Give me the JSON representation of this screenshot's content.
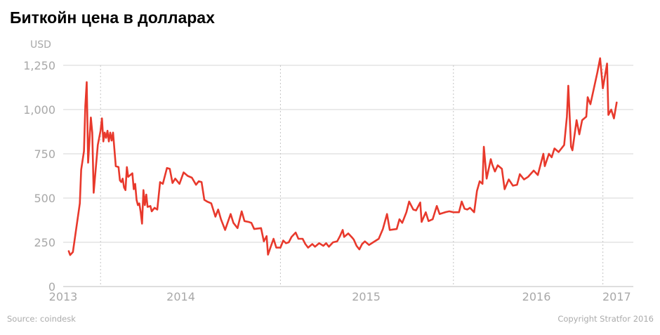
{
  "title": "Биткойн цена в долларах",
  "footer": {
    "source": "Source: coindesk",
    "copyright": "Copyright Stratfor 2016"
  },
  "chart_data": {
    "type": "line",
    "title": "Биткойн цена в долларах",
    "ylabel": "USD",
    "xlabel": "",
    "ylim": [
      0,
      1250
    ],
    "xlim": [
      2013.0,
      2017.12
    ],
    "y_ticks": [
      {
        "value": 0,
        "label": "0"
      },
      {
        "value": 250,
        "label": "250"
      },
      {
        "value": 500,
        "label": "500"
      },
      {
        "value": 750,
        "label": "750"
      },
      {
        "value": 1000,
        "label": "1,000"
      },
      {
        "value": 1250,
        "label": "1,250"
      }
    ],
    "x_ticks": [
      {
        "value": 2013.0,
        "label": "2013"
      },
      {
        "value": 2013.85,
        "label": "2014"
      },
      {
        "value": 2015.19,
        "label": "2015"
      },
      {
        "value": 2016.42,
        "label": "2016"
      },
      {
        "value": 2017.0,
        "label": "2017"
      }
    ],
    "vertical_gridlines": [
      2013.27,
      2014.57,
      2015.82,
      2016.9
    ],
    "grid": true,
    "color": "#e8392c",
    "series": [
      {
        "values": [
          [
            2013.04,
            200
          ],
          [
            2013.05,
            178
          ],
          [
            2013.07,
            195
          ],
          [
            2013.12,
            470
          ],
          [
            2013.13,
            660
          ],
          [
            2013.15,
            765
          ],
          [
            2013.16,
            1020
          ],
          [
            2013.17,
            1155
          ],
          [
            2013.18,
            700
          ],
          [
            2013.2,
            955
          ],
          [
            2013.21,
            870
          ],
          [
            2013.22,
            530
          ],
          [
            2013.25,
            800
          ],
          [
            2013.27,
            880
          ],
          [
            2013.28,
            950
          ],
          [
            2013.29,
            820
          ],
          [
            2013.3,
            870
          ],
          [
            2013.31,
            840
          ],
          [
            2013.32,
            880
          ],
          [
            2013.33,
            820
          ],
          [
            2013.34,
            870
          ],
          [
            2013.35,
            825
          ],
          [
            2013.36,
            870
          ],
          [
            2013.38,
            680
          ],
          [
            2013.4,
            675
          ],
          [
            2013.41,
            600
          ],
          [
            2013.42,
            590
          ],
          [
            2013.43,
            610
          ],
          [
            2013.44,
            560
          ],
          [
            2013.45,
            545
          ],
          [
            2013.46,
            675
          ],
          [
            2013.47,
            620
          ],
          [
            2013.5,
            640
          ],
          [
            2013.51,
            550
          ],
          [
            2013.52,
            580
          ],
          [
            2013.53,
            490
          ],
          [
            2013.54,
            460
          ],
          [
            2013.55,
            470
          ],
          [
            2013.56,
            420
          ],
          [
            2013.57,
            355
          ],
          [
            2013.58,
            545
          ],
          [
            2013.59,
            460
          ],
          [
            2013.6,
            520
          ],
          [
            2013.61,
            450
          ],
          [
            2013.63,
            455
          ],
          [
            2013.64,
            425
          ],
          [
            2013.66,
            445
          ],
          [
            2013.68,
            435
          ],
          [
            2013.7,
            590
          ],
          [
            2013.72,
            580
          ],
          [
            2013.75,
            670
          ],
          [
            2013.77,
            665
          ],
          [
            2013.79,
            585
          ],
          [
            2013.81,
            610
          ],
          [
            2013.84,
            580
          ],
          [
            2013.87,
            645
          ],
          [
            2013.9,
            625
          ],
          [
            2013.93,
            615
          ],
          [
            2013.96,
            575
          ],
          [
            2013.98,
            595
          ],
          [
            2014.0,
            590
          ],
          [
            2014.02,
            490
          ],
          [
            2014.04,
            480
          ],
          [
            2014.07,
            470
          ],
          [
            2014.1,
            395
          ],
          [
            2014.12,
            435
          ],
          [
            2014.14,
            380
          ],
          [
            2014.17,
            320
          ],
          [
            2014.21,
            410
          ],
          [
            2014.23,
            360
          ],
          [
            2014.26,
            330
          ],
          [
            2014.29,
            425
          ],
          [
            2014.31,
            370
          ],
          [
            2014.34,
            365
          ],
          [
            2014.36,
            360
          ],
          [
            2014.38,
            325
          ],
          [
            2014.43,
            330
          ],
          [
            2014.45,
            255
          ],
          [
            2014.47,
            285
          ],
          [
            2014.48,
            180
          ],
          [
            2014.5,
            225
          ],
          [
            2014.52,
            270
          ],
          [
            2014.54,
            220
          ],
          [
            2014.57,
            220
          ],
          [
            2014.59,
            260
          ],
          [
            2014.61,
            245
          ],
          [
            2014.63,
            250
          ],
          [
            2014.65,
            280
          ],
          [
            2014.68,
            305
          ],
          [
            2014.7,
            270
          ],
          [
            2014.73,
            270
          ],
          [
            2014.75,
            240
          ],
          [
            2014.77,
            220
          ],
          [
            2014.8,
            240
          ],
          [
            2014.82,
            225
          ],
          [
            2014.85,
            245
          ],
          [
            2014.88,
            230
          ],
          [
            2014.9,
            245
          ],
          [
            2014.92,
            225
          ],
          [
            2014.95,
            250
          ],
          [
            2014.98,
            255
          ],
          [
            2015.0,
            285
          ],
          [
            2015.02,
            320
          ],
          [
            2015.03,
            280
          ],
          [
            2015.06,
            300
          ],
          [
            2015.09,
            275
          ],
          [
            2015.1,
            265
          ],
          [
            2015.12,
            230
          ],
          [
            2015.14,
            210
          ],
          [
            2015.16,
            240
          ],
          [
            2015.18,
            255
          ],
          [
            2015.21,
            235
          ],
          [
            2015.24,
            250
          ],
          [
            2015.28,
            270
          ],
          [
            2015.31,
            325
          ],
          [
            2015.34,
            410
          ],
          [
            2015.36,
            320
          ],
          [
            2015.41,
            325
          ],
          [
            2015.43,
            380
          ],
          [
            2015.45,
            360
          ],
          [
            2015.48,
            420
          ],
          [
            2015.5,
            480
          ],
          [
            2015.53,
            435
          ],
          [
            2015.55,
            430
          ],
          [
            2015.58,
            475
          ],
          [
            2015.59,
            365
          ],
          [
            2015.62,
            420
          ],
          [
            2015.64,
            370
          ],
          [
            2015.67,
            380
          ],
          [
            2015.7,
            455
          ],
          [
            2015.72,
            410
          ],
          [
            2015.76,
            420
          ],
          [
            2015.79,
            425
          ],
          [
            2015.82,
            420
          ],
          [
            2015.86,
            420
          ],
          [
            2015.88,
            480
          ],
          [
            2015.9,
            440
          ],
          [
            2015.92,
            435
          ],
          [
            2015.94,
            445
          ],
          [
            2015.97,
            420
          ],
          [
            2015.99,
            540
          ],
          [
            2016.01,
            595
          ],
          [
            2016.03,
            580
          ],
          [
            2016.04,
            790
          ],
          [
            2016.06,
            610
          ],
          [
            2016.09,
            720
          ],
          [
            2016.1,
            690
          ],
          [
            2016.12,
            650
          ],
          [
            2016.14,
            685
          ],
          [
            2016.17,
            665
          ],
          [
            2016.19,
            550
          ],
          [
            2016.22,
            605
          ],
          [
            2016.25,
            570
          ],
          [
            2016.28,
            575
          ],
          [
            2016.3,
            635
          ],
          [
            2016.33,
            605
          ],
          [
            2016.36,
            620
          ],
          [
            2016.4,
            655
          ],
          [
            2016.43,
            630
          ],
          [
            2016.47,
            750
          ],
          [
            2016.48,
            680
          ],
          [
            2016.51,
            750
          ],
          [
            2016.53,
            730
          ],
          [
            2016.55,
            780
          ],
          [
            2016.58,
            760
          ],
          [
            2016.62,
            800
          ],
          [
            2016.64,
            960
          ],
          [
            2016.65,
            1135
          ],
          [
            2016.67,
            790
          ],
          [
            2016.68,
            770
          ],
          [
            2016.71,
            940
          ],
          [
            2016.73,
            860
          ],
          [
            2016.75,
            940
          ],
          [
            2016.78,
            960
          ],
          [
            2016.79,
            1070
          ],
          [
            2016.81,
            1030
          ],
          [
            2016.86,
            1210
          ],
          [
            2016.88,
            1290
          ],
          [
            2016.9,
            1120
          ],
          [
            2016.93,
            1260
          ],
          [
            2016.94,
            970
          ],
          [
            2016.96,
            1000
          ],
          [
            2016.98,
            950
          ],
          [
            2017.0,
            1040
          ]
        ]
      }
    ]
  }
}
